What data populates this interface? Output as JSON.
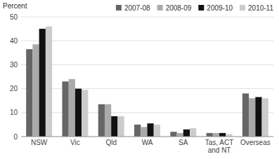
{
  "chart_data": {
    "type": "bar",
    "ylabel": "Percent",
    "categories": [
      "NSW",
      "Vic",
      "Qld",
      "WA",
      "SA",
      "Tas, ACT\nand NT",
      "Overseas"
    ],
    "series": [
      {
        "name": "2007-08",
        "color": "#666666",
        "values": [
          36.5,
          23.0,
          13.5,
          5.0,
          2.0,
          1.5,
          18.0
        ]
      },
      {
        "name": "2008-09",
        "color": "#aaaaaa",
        "values": [
          38.5,
          24.0,
          13.5,
          4.0,
          1.5,
          1.5,
          16.0
        ]
      },
      {
        "name": "2009-10",
        "color": "#111111",
        "values": [
          45.0,
          20.0,
          8.5,
          5.5,
          3.0,
          1.5,
          16.5
        ]
      },
      {
        "name": "2010-11",
        "color": "#cccccc",
        "values": [
          46.0,
          19.5,
          8.5,
          5.0,
          3.5,
          1.0,
          16.0
        ]
      }
    ],
    "ylim": [
      0,
      50
    ],
    "yticks": [
      0,
      10,
      20,
      30,
      40,
      50
    ],
    "grid": true,
    "legend": "upper right"
  }
}
